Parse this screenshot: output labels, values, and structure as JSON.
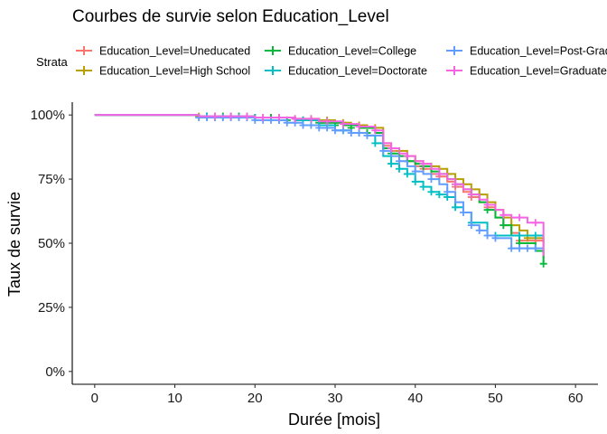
{
  "chart_data": {
    "type": "line",
    "subtype": "kaplan-meier-step",
    "title": "Courbes de survie selon Education_Level",
    "xlabel": "Durée [mois]",
    "ylabel": "Taux de survie",
    "xlim": [
      -2.8,
      62.8
    ],
    "ylim": [
      -0.05,
      1.05
    ],
    "x_ticks": [
      0,
      10,
      20,
      30,
      40,
      50,
      60
    ],
    "x_tick_labels": [
      "0",
      "10",
      "20",
      "30",
      "40",
      "50",
      "60"
    ],
    "y_ticks": [
      0,
      0.25,
      0.5,
      0.75,
      1.0
    ],
    "y_tick_labels": [
      "0%",
      "25%",
      "50%",
      "75%",
      "100%"
    ],
    "grid": false,
    "legend": {
      "title": "Strata",
      "position": "top",
      "columns": 3,
      "order": [
        0,
        1,
        2,
        3,
        4,
        5
      ]
    },
    "series": [
      {
        "name": "Education_Level=Uneducated",
        "color": "#F8766D",
        "x": [
          0,
          13,
          20,
          25,
          28,
          31,
          33,
          35,
          36,
          37,
          38,
          39,
          40,
          41,
          42,
          43,
          44,
          45,
          46,
          47,
          48,
          49,
          50,
          51,
          52,
          53,
          56
        ],
        "y": [
          1.0,
          0.995,
          0.99,
          0.98,
          0.97,
          0.96,
          0.95,
          0.93,
          0.88,
          0.86,
          0.84,
          0.82,
          0.8,
          0.79,
          0.77,
          0.76,
          0.74,
          0.72,
          0.7,
          0.68,
          0.66,
          0.64,
          0.6,
          0.57,
          0.54,
          0.51,
          0.44
        ],
        "censor_x": [
          14,
          16,
          18,
          20,
          22,
          24,
          26,
          28,
          30,
          32,
          34,
          37,
          39,
          41,
          43,
          45,
          47,
          49,
          51,
          53,
          55
        ],
        "censor_y": [
          0.995,
          0.995,
          0.995,
          0.99,
          0.99,
          0.98,
          0.98,
          0.97,
          0.96,
          0.95,
          0.93,
          0.86,
          0.82,
          0.79,
          0.76,
          0.72,
          0.68,
          0.64,
          0.57,
          0.51,
          0.51
        ]
      },
      {
        "name": "Education_Level=High School",
        "color": "#B79F00",
        "x": [
          0,
          13,
          20,
          25,
          28,
          30,
          32,
          34,
          36,
          37,
          38,
          39,
          40,
          41,
          42,
          43,
          44,
          45,
          46,
          47,
          48,
          49,
          50,
          51,
          52,
          53,
          54,
          56
        ],
        "y": [
          1.0,
          0.995,
          0.99,
          0.985,
          0.98,
          0.97,
          0.96,
          0.95,
          0.89,
          0.87,
          0.86,
          0.84,
          0.82,
          0.81,
          0.8,
          0.79,
          0.77,
          0.75,
          0.73,
          0.71,
          0.69,
          0.66,
          0.63,
          0.6,
          0.57,
          0.55,
          0.52,
          0.5
        ],
        "censor_x": [
          13,
          15,
          17,
          19,
          21,
          23,
          25,
          27,
          29,
          31,
          33,
          35,
          38,
          40,
          42,
          44,
          46,
          48,
          50,
          52,
          54
        ],
        "censor_y": [
          0.995,
          0.995,
          0.995,
          0.995,
          0.99,
          0.99,
          0.985,
          0.985,
          0.98,
          0.97,
          0.96,
          0.95,
          0.86,
          0.82,
          0.8,
          0.77,
          0.73,
          0.69,
          0.63,
          0.57,
          0.52
        ]
      },
      {
        "name": "Education_Level=College",
        "color": "#00BA38",
        "x": [
          0,
          13,
          20,
          25,
          28,
          31,
          33,
          35,
          36,
          37,
          38,
          39,
          40,
          41,
          42,
          43,
          44,
          45,
          46,
          47,
          48,
          49,
          50,
          51,
          52,
          53,
          55,
          56
        ],
        "y": [
          1.0,
          0.995,
          0.99,
          0.98,
          0.97,
          0.96,
          0.95,
          0.93,
          0.87,
          0.85,
          0.84,
          0.82,
          0.81,
          0.8,
          0.78,
          0.77,
          0.75,
          0.73,
          0.71,
          0.69,
          0.66,
          0.63,
          0.6,
          0.57,
          0.53,
          0.5,
          0.47,
          0.42
        ],
        "censor_x": [
          14,
          16,
          18,
          20,
          22,
          24,
          26,
          28,
          30,
          32,
          34,
          37,
          39,
          41,
          43,
          45,
          47,
          49,
          51,
          53,
          56
        ],
        "censor_y": [
          0.995,
          0.995,
          0.995,
          0.99,
          0.99,
          0.98,
          0.98,
          0.97,
          0.96,
          0.95,
          0.93,
          0.85,
          0.82,
          0.8,
          0.77,
          0.73,
          0.69,
          0.63,
          0.57,
          0.5,
          0.42
        ]
      },
      {
        "name": "Education_Level=Doctorate",
        "color": "#00BFC4",
        "x": [
          0,
          13,
          20,
          25,
          28,
          30,
          32,
          34,
          35,
          36,
          37,
          38,
          39,
          40,
          41,
          42,
          43,
          44,
          45,
          46,
          47,
          49,
          52,
          56
        ],
        "y": [
          1.0,
          0.995,
          0.99,
          0.98,
          0.96,
          0.94,
          0.93,
          0.92,
          0.89,
          0.84,
          0.81,
          0.79,
          0.77,
          0.74,
          0.72,
          0.7,
          0.69,
          0.68,
          0.64,
          0.62,
          0.58,
          0.53,
          0.53,
          0.53
        ],
        "censor_x": [
          14,
          17,
          20,
          23,
          26,
          29,
          31,
          33,
          35,
          37,
          38,
          39,
          40,
          41,
          42,
          43,
          44,
          45,
          47,
          50,
          53,
          55
        ],
        "censor_y": [
          0.995,
          0.995,
          0.99,
          0.98,
          0.98,
          0.96,
          0.94,
          0.93,
          0.89,
          0.81,
          0.79,
          0.77,
          0.74,
          0.72,
          0.7,
          0.69,
          0.68,
          0.64,
          0.58,
          0.53,
          0.53,
          0.53
        ]
      },
      {
        "name": "Education_Level=Post-Graduate",
        "color": "#619CFF",
        "x": [
          0,
          13,
          20,
          24,
          26,
          28,
          30,
          32,
          34,
          36,
          37,
          38,
          39,
          40,
          41,
          42,
          43,
          44,
          45,
          46,
          47,
          48,
          49,
          50,
          52,
          56
        ],
        "y": [
          1.0,
          0.99,
          0.98,
          0.97,
          0.96,
          0.95,
          0.94,
          0.93,
          0.92,
          0.86,
          0.84,
          0.82,
          0.8,
          0.78,
          0.77,
          0.75,
          0.73,
          0.7,
          0.66,
          0.62,
          0.57,
          0.55,
          0.53,
          0.52,
          0.48,
          0.48
        ],
        "censor_x": [
          13,
          14,
          15,
          16,
          17,
          18,
          19,
          20,
          21,
          22,
          23,
          24,
          25,
          26,
          27,
          28,
          29,
          30,
          31,
          32,
          33,
          34,
          36,
          38,
          40,
          42,
          44,
          46,
          47,
          48,
          49,
          50,
          52,
          53,
          54,
          55
        ],
        "censor_y": [
          0.99,
          0.99,
          0.99,
          0.99,
          0.99,
          0.99,
          0.99,
          0.98,
          0.98,
          0.98,
          0.98,
          0.97,
          0.97,
          0.96,
          0.96,
          0.95,
          0.95,
          0.94,
          0.94,
          0.93,
          0.93,
          0.92,
          0.86,
          0.82,
          0.78,
          0.75,
          0.7,
          0.62,
          0.57,
          0.55,
          0.53,
          0.52,
          0.48,
          0.48,
          0.48,
          0.48
        ]
      },
      {
        "name": "Education_Level=Graduate",
        "color": "#F564E3",
        "x": [
          0,
          13,
          20,
          25,
          28,
          31,
          33,
          35,
          36,
          37,
          38,
          39,
          40,
          41,
          42,
          43,
          44,
          45,
          46,
          47,
          48,
          49,
          50,
          51,
          52,
          54,
          56
        ],
        "y": [
          1.0,
          0.995,
          0.99,
          0.985,
          0.975,
          0.965,
          0.955,
          0.94,
          0.89,
          0.87,
          0.85,
          0.84,
          0.82,
          0.81,
          0.79,
          0.77,
          0.75,
          0.73,
          0.71,
          0.69,
          0.67,
          0.65,
          0.63,
          0.61,
          0.6,
          0.58,
          0.45
        ],
        "censor_x": [
          15,
          17,
          19,
          21,
          23,
          25,
          27,
          29,
          31,
          33,
          35,
          37,
          39,
          41,
          43,
          45,
          47,
          49,
          51,
          53,
          55
        ],
        "censor_y": [
          0.995,
          0.995,
          0.995,
          0.99,
          0.99,
          0.985,
          0.985,
          0.975,
          0.965,
          0.955,
          0.94,
          0.87,
          0.84,
          0.81,
          0.77,
          0.73,
          0.69,
          0.65,
          0.61,
          0.6,
          0.58
        ]
      }
    ]
  }
}
